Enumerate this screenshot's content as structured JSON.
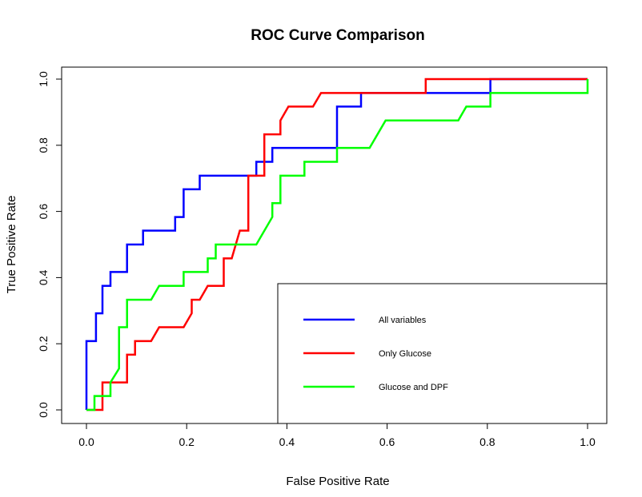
{
  "chart_data": {
    "type": "line",
    "title": "ROC Curve Comparison",
    "xlabel": "False Positive Rate",
    "ylabel": "True Positive Rate",
    "xlim": [
      0,
      1
    ],
    "ylim": [
      0,
      1
    ],
    "x_ticks": [
      "0.0",
      "0.2",
      "0.4",
      "0.6",
      "0.8",
      "1.0"
    ],
    "y_ticks": [
      "0.0",
      "0.2",
      "0.4",
      "0.6",
      "0.8",
      "1.0"
    ],
    "grid": false,
    "legend_position": "bottom-right",
    "series": [
      {
        "name": "All variables",
        "color": "#0000ff",
        "points": [
          [
            0,
            0
          ],
          [
            0,
            0.208
          ],
          [
            0.019,
            0.208
          ],
          [
            0.019,
            0.292
          ],
          [
            0.032,
            0.292
          ],
          [
            0.032,
            0.375
          ],
          [
            0.048,
            0.375
          ],
          [
            0.048,
            0.417
          ],
          [
            0.081,
            0.417
          ],
          [
            0.081,
            0.5
          ],
          [
            0.113,
            0.5
          ],
          [
            0.113,
            0.542
          ],
          [
            0.177,
            0.542
          ],
          [
            0.177,
            0.583
          ],
          [
            0.194,
            0.583
          ],
          [
            0.194,
            0.667
          ],
          [
            0.226,
            0.667
          ],
          [
            0.226,
            0.708
          ],
          [
            0.339,
            0.708
          ],
          [
            0.339,
            0.75
          ],
          [
            0.371,
            0.75
          ],
          [
            0.371,
            0.792
          ],
          [
            0.5,
            0.792
          ],
          [
            0.5,
            0.917
          ],
          [
            0.548,
            0.917
          ],
          [
            0.548,
            0.958
          ],
          [
            0.806,
            0.958
          ],
          [
            0.806,
            1.0
          ],
          [
            1.0,
            1.0
          ]
        ]
      },
      {
        "name": "Only Glucose",
        "color": "#ff0000",
        "points": [
          [
            0,
            0
          ],
          [
            0.032,
            0
          ],
          [
            0.032,
            0.083
          ],
          [
            0.081,
            0.083
          ],
          [
            0.081,
            0.167
          ],
          [
            0.097,
            0.167
          ],
          [
            0.097,
            0.208
          ],
          [
            0.129,
            0.208
          ],
          [
            0.145,
            0.25
          ],
          [
            0.194,
            0.25
          ],
          [
            0.21,
            0.292
          ],
          [
            0.21,
            0.333
          ],
          [
            0.226,
            0.333
          ],
          [
            0.242,
            0.375
          ],
          [
            0.274,
            0.375
          ],
          [
            0.274,
            0.458
          ],
          [
            0.29,
            0.458
          ],
          [
            0.306,
            0.542
          ],
          [
            0.323,
            0.542
          ],
          [
            0.323,
            0.708
          ],
          [
            0.355,
            0.708
          ],
          [
            0.355,
            0.833
          ],
          [
            0.387,
            0.833
          ],
          [
            0.387,
            0.875
          ],
          [
            0.403,
            0.917
          ],
          [
            0.452,
            0.917
          ],
          [
            0.468,
            0.958
          ],
          [
            0.677,
            0.958
          ],
          [
            0.677,
            1.0
          ],
          [
            1.0,
            1.0
          ]
        ]
      },
      {
        "name": "Glucose and DPF",
        "color": "#00ff00",
        "points": [
          [
            0,
            0
          ],
          [
            0.016,
            0
          ],
          [
            0.016,
            0.042
          ],
          [
            0.048,
            0.042
          ],
          [
            0.048,
            0.083
          ],
          [
            0.065,
            0.125
          ],
          [
            0.065,
            0.25
          ],
          [
            0.081,
            0.25
          ],
          [
            0.081,
            0.333
          ],
          [
            0.129,
            0.333
          ],
          [
            0.145,
            0.375
          ],
          [
            0.194,
            0.375
          ],
          [
            0.194,
            0.417
          ],
          [
            0.242,
            0.417
          ],
          [
            0.242,
            0.458
          ],
          [
            0.258,
            0.458
          ],
          [
            0.258,
            0.5
          ],
          [
            0.339,
            0.5
          ],
          [
            0.371,
            0.583
          ],
          [
            0.371,
            0.625
          ],
          [
            0.387,
            0.625
          ],
          [
            0.387,
            0.708
          ],
          [
            0.435,
            0.708
          ],
          [
            0.435,
            0.75
          ],
          [
            0.5,
            0.75
          ],
          [
            0.5,
            0.792
          ],
          [
            0.565,
            0.792
          ],
          [
            0.597,
            0.875
          ],
          [
            0.742,
            0.875
          ],
          [
            0.758,
            0.917
          ],
          [
            0.806,
            0.917
          ],
          [
            0.806,
            0.958
          ],
          [
            1.0,
            0.958
          ],
          [
            1.0,
            1.0
          ]
        ]
      }
    ]
  }
}
